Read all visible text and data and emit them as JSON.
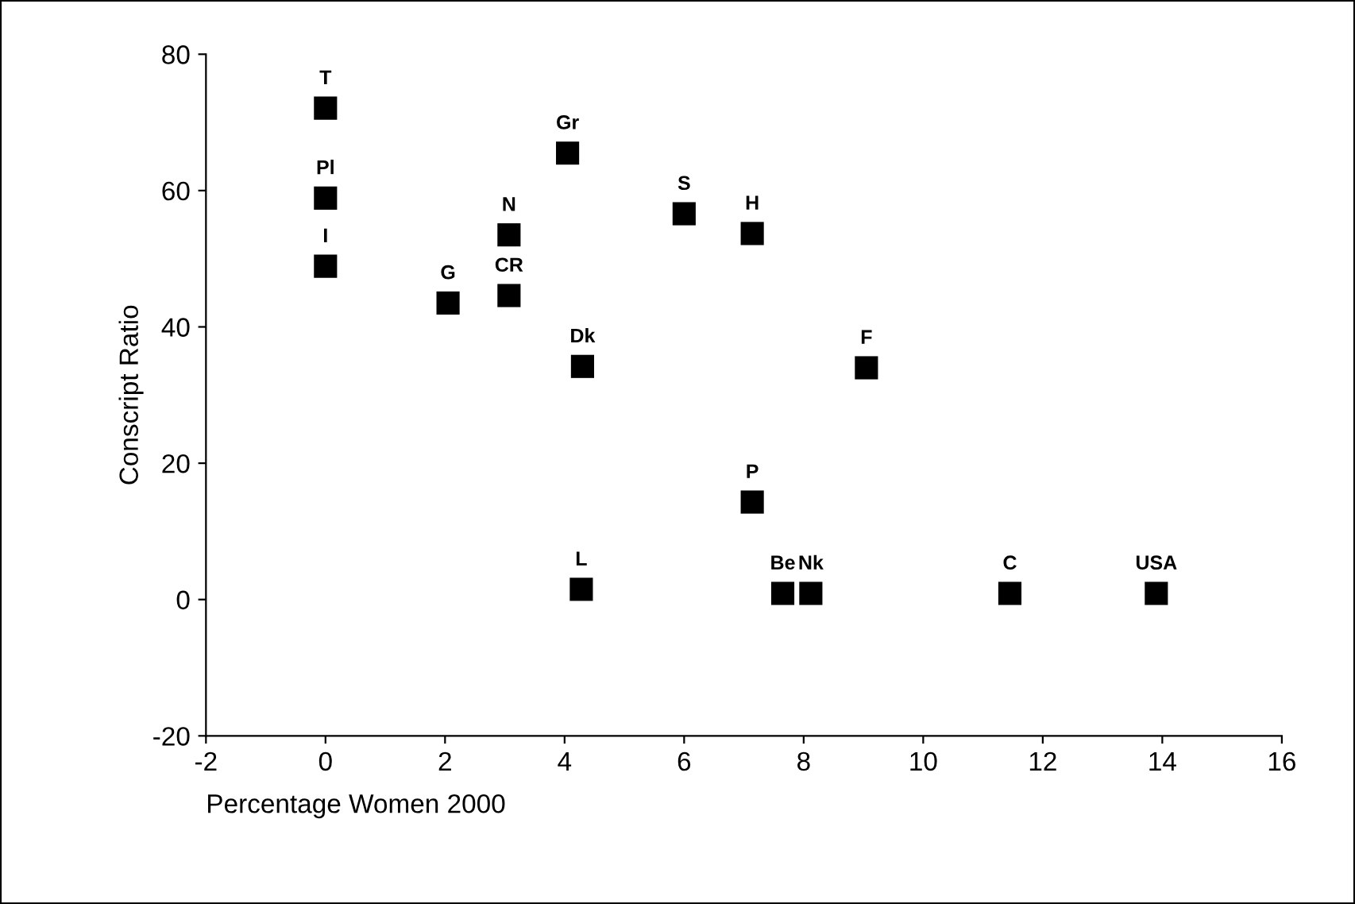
{
  "chart_data": {
    "type": "scatter",
    "xlabel": "Percentage Women 2000",
    "ylabel": "Conscript Ratio",
    "x": [
      0,
      0,
      0,
      2.05,
      3.07,
      3.07,
      4.05,
      4.3,
      6.0,
      7.14,
      9.05,
      7.14,
      4.28,
      7.65,
      8.12,
      11.45,
      13.9
    ],
    "series": [
      {
        "color": "#000000",
        "values": [
          72.1,
          58.9,
          48.9,
          43.5,
          44.6,
          53.5,
          65.5,
          34.2,
          56.6,
          53.7,
          34.0,
          14.3,
          1.5,
          0.9,
          0.9,
          0.9,
          0.9
        ]
      }
    ],
    "annotations": [
      {
        "text": "T",
        "x": 0,
        "y": 72.1
      },
      {
        "text": "Pl",
        "x": 0,
        "y": 58.9
      },
      {
        "text": "I",
        "x": 0,
        "y": 48.9
      },
      {
        "text": "G",
        "x": 2.05,
        "y": 43.5
      },
      {
        "text": "CR",
        "x": 3.07,
        "y": 44.6
      },
      {
        "text": "N",
        "x": 3.07,
        "y": 53.5
      },
      {
        "text": "Gr",
        "x": 4.05,
        "y": 65.5
      },
      {
        "text": "Dk",
        "x": 4.3,
        "y": 34.2
      },
      {
        "text": "S",
        "x": 6.0,
        "y": 56.6
      },
      {
        "text": "H",
        "x": 7.14,
        "y": 53.7
      },
      {
        "text": "F",
        "x": 9.05,
        "y": 34.0
      },
      {
        "text": "P",
        "x": 7.14,
        "y": 14.3
      },
      {
        "text": "L",
        "x": 4.28,
        "y": 1.5
      },
      {
        "text": "Be",
        "x": 7.65,
        "y": 0.9
      },
      {
        "text": "Nk",
        "x": 8.12,
        "y": 0.9
      },
      {
        "text": "C",
        "x": 11.45,
        "y": 0.9
      },
      {
        "text": "USA",
        "x": 13.9,
        "y": 0.9
      }
    ],
    "xlim": [
      -2,
      16
    ],
    "xticks": [
      -2,
      0,
      2,
      4,
      6,
      8,
      10,
      12,
      14,
      16
    ],
    "ylim": [
      -20,
      80
    ],
    "yticks": [
      -20,
      0,
      20,
      40,
      60,
      80
    ],
    "marker": "square",
    "grid": false,
    "legend": false
  }
}
